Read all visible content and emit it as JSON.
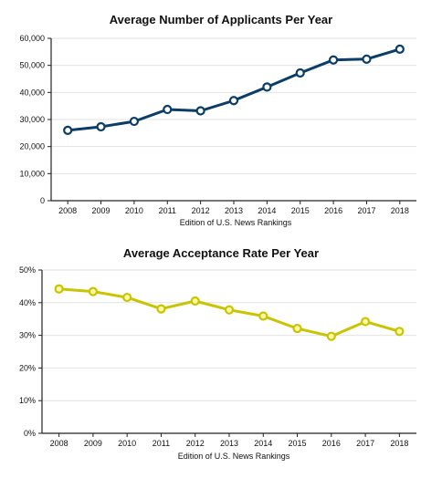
{
  "chart_data": [
    {
      "type": "line",
      "title": "Average Number of Applicants Per Year",
      "xlabel": "Edition of U.S. News Rankings",
      "ylabel": "",
      "ylim": [
        0,
        60000
      ],
      "yticks": [
        0,
        10000,
        20000,
        30000,
        40000,
        50000,
        60000
      ],
      "ytick_labels": [
        "0",
        "10,000",
        "20,000",
        "30,000",
        "40,000",
        "50,000",
        "60,000"
      ],
      "grid": true,
      "legend": "none",
      "color": "#0b3d66",
      "marker_fill": "#ffffff",
      "x": [
        "2008",
        "2009",
        "2010",
        "2011",
        "2012",
        "2013",
        "2014",
        "2015",
        "2016",
        "2017",
        "2018"
      ],
      "values": [
        26000,
        27300,
        29300,
        33700,
        33200,
        37000,
        42000,
        47200,
        52000,
        52300,
        56000
      ]
    },
    {
      "type": "line",
      "title": "Average Acceptance Rate Per Year",
      "xlabel": "Edition of U.S. News Rankings",
      "ylabel": "",
      "ylim": [
        0,
        50
      ],
      "yticks": [
        0,
        10,
        20,
        30,
        40,
        50
      ],
      "ytick_labels": [
        "0%",
        "10%",
        "20%",
        "30%",
        "40%",
        "50%"
      ],
      "grid": true,
      "legend": "none",
      "color": "#c9c400",
      "marker_fill": "#fff9a8",
      "x": [
        "2008",
        "2009",
        "2010",
        "2011",
        "2012",
        "2013",
        "2014",
        "2015",
        "2016",
        "2017",
        "2018"
      ],
      "values": [
        44.2,
        43.4,
        41.6,
        38.1,
        40.5,
        37.8,
        35.9,
        32.1,
        29.7,
        34.2,
        31.2
      ]
    }
  ]
}
